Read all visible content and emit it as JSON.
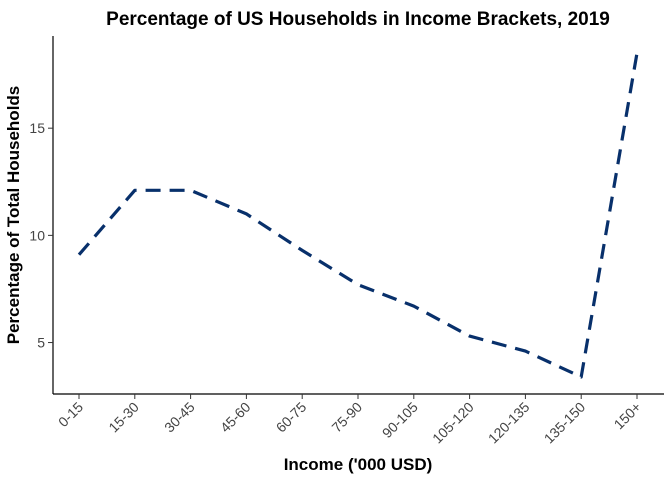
{
  "chart_data": {
    "type": "line",
    "title": "Percentage of US Households in Income Brackets, 2019",
    "xlabel": "Income ('000 USD)",
    "ylabel": "Percentage of Total Households",
    "categories": [
      "0-15",
      "15-30",
      "30-45",
      "45-60",
      "60-75",
      "75-90",
      "90-105",
      "105-120",
      "120-135",
      "135-150",
      "150+"
    ],
    "series": [
      {
        "values": [
          9.1,
          12.1,
          12.1,
          11.0,
          9.3,
          7.7,
          6.7,
          5.3,
          4.6,
          3.4,
          18.5
        ],
        "color": "#08306b",
        "style": "dashed"
      }
    ],
    "yticks": [
      5,
      10,
      15
    ],
    "ylim": [
      2.6,
      19.3
    ],
    "grid": false,
    "legend": "none"
  }
}
